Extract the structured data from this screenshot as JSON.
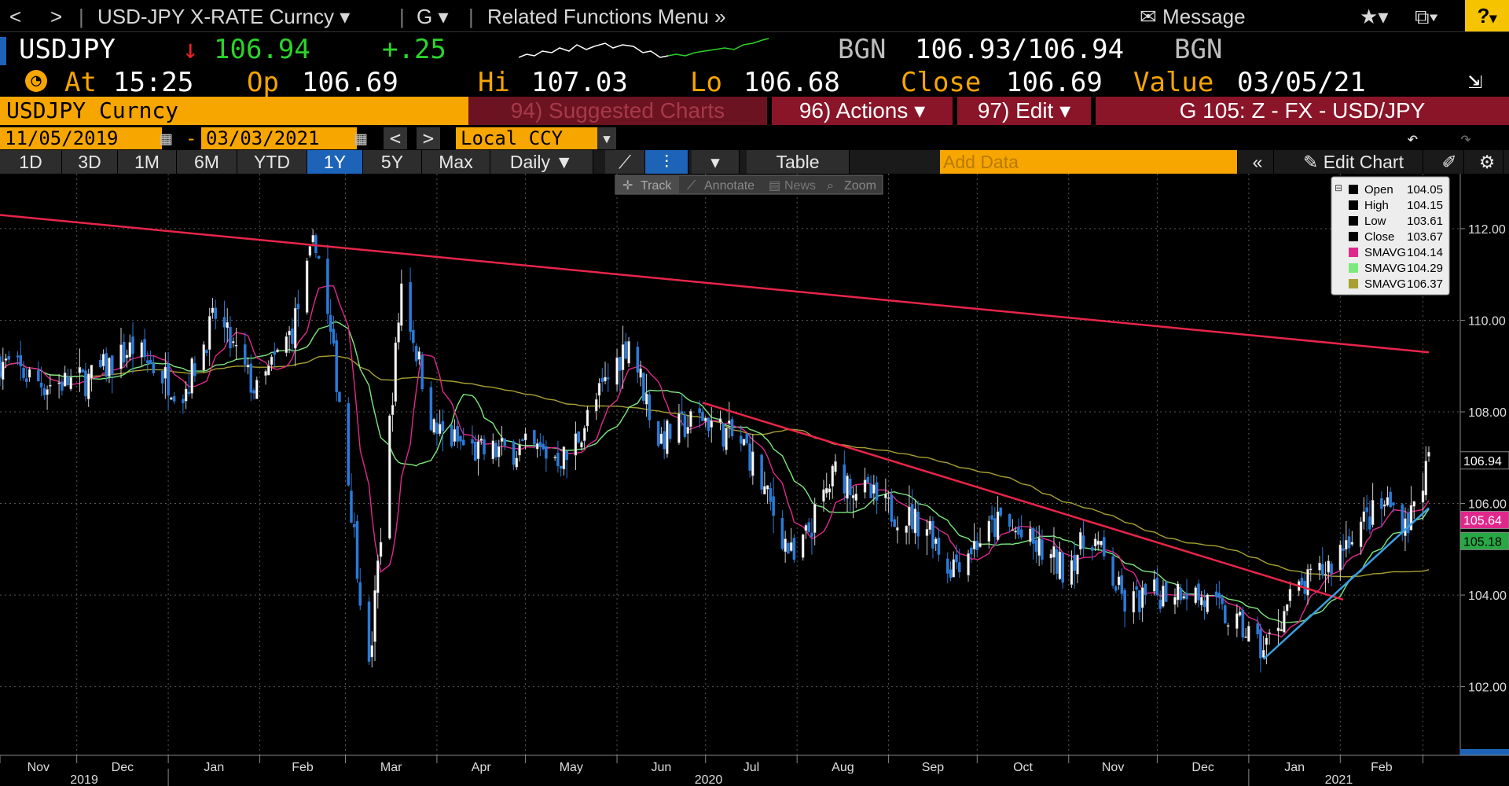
{
  "title_bar": {
    "back": "<",
    "forward": ">",
    "security": "USD-JPY X-RATE Curncy",
    "g_menu": "G",
    "related": "Related Functions Menu",
    "message": "Message",
    "help": "?"
  },
  "quote": {
    "ticker": "USDJPY",
    "arrow": "↓",
    "last": "106.94",
    "change": "+.25",
    "bid_src": "BGN",
    "bid_ask": "106.93/106.94",
    "ask_src": "BGN"
  },
  "info": {
    "at_label": "At",
    "time": "15:25",
    "op_label": "Op",
    "open": "106.69",
    "hi_label": "Hi",
    "high": "107.03",
    "lo_label": "Lo",
    "low": "106.68",
    "close_label": "Close",
    "close": "106.69",
    "value_label": "Value",
    "value_date": "03/05/21"
  },
  "command": {
    "security_field": "USDJPY Curncy",
    "suggested": "94) Suggested Charts",
    "actions": "96) Actions",
    "edit": "97) Edit",
    "chart_id": "G 105: Z - FX - USD/JPY"
  },
  "dates": {
    "start": "11/05/2019",
    "dash": "-",
    "end": "03/03/2021",
    "currency": "Local CCY"
  },
  "ranges": {
    "buttons": [
      "1D",
      "3D",
      "1M",
      "6M",
      "YTD",
      "1Y",
      "5Y",
      "Max"
    ],
    "active": "1Y",
    "period": "Daily",
    "table": "Table",
    "add_data_placeholder": "Add Data",
    "edit_chart": "Edit Chart"
  },
  "toolbar": {
    "track": "Track",
    "annotate": "Annotate",
    "news": "News",
    "zoom": "Zoom"
  },
  "legend": {
    "rows": [
      {
        "label": "Open",
        "value": "104.05",
        "color": "#000000"
      },
      {
        "label": "High",
        "value": "104.15",
        "color": "#000000"
      },
      {
        "label": "Low",
        "value": "103.61",
        "color": "#000000"
      },
      {
        "label": "Close",
        "value": "103.67",
        "color": "#000000"
      },
      {
        "label": "SMAVG",
        "value": "104.14",
        "color": "#e0288c"
      },
      {
        "label": "SMAVG",
        "value": "104.29",
        "color": "#7de87d"
      },
      {
        "label": "SMAVG",
        "value": "106.37",
        "color": "#a8a030"
      }
    ]
  },
  "colors": {
    "up": "#ffffff",
    "down": "#2b7bd8",
    "sma_pink": "#e0288c",
    "sma_green": "#7de87d",
    "sma_olive": "#a8a030",
    "trend_red": "#e8254a",
    "trend_blue": "#3a9ee0",
    "accent_orange": "#f7a600"
  },
  "chart_data": {
    "type": "candlestick",
    "x_start": "2019-11-05",
    "x_end": "2021-03-03",
    "ylim": [
      100.5,
      113.2
    ],
    "y_ticks": [
      "112.00",
      "110.00",
      "108.00",
      "106.00",
      "104.00",
      "102.00"
    ],
    "month_labels": [
      "Nov",
      "Dec",
      "Jan",
      "Feb",
      "Mar",
      "Apr",
      "May",
      "Jun",
      "Jul",
      "Aug",
      "Sep",
      "Oct",
      "Nov",
      "Dec",
      "Jan",
      "Feb"
    ],
    "year_labels": [
      "2019",
      "2020",
      "2021"
    ],
    "last_price_label": "106.94",
    "sma_labels": [
      "105.64",
      "105.18"
    ],
    "close_path": [
      [
        "2019-11-05",
        109.1
      ],
      [
        "2019-11-20",
        108.6
      ],
      [
        "2019-12-05",
        108.7
      ],
      [
        "2019-12-20",
        109.4
      ],
      [
        "2020-01-06",
        108.4
      ],
      [
        "2020-01-17",
        110.1
      ],
      [
        "2020-01-31",
        108.4
      ],
      [
        "2020-02-12",
        109.8
      ],
      [
        "2020-02-20",
        111.8
      ],
      [
        "2020-02-28",
        108.3
      ],
      [
        "2020-03-09",
        102.3
      ],
      [
        "2020-03-20",
        110.8
      ],
      [
        "2020-03-31",
        107.6
      ],
      [
        "2020-04-15",
        107.1
      ],
      [
        "2020-04-30",
        107.2
      ],
      [
        "2020-05-15",
        107.0
      ],
      [
        "2020-06-05",
        109.6
      ],
      [
        "2020-06-15",
        107.4
      ],
      [
        "2020-06-30",
        107.9
      ],
      [
        "2020-07-15",
        107.2
      ],
      [
        "2020-07-31",
        104.7
      ],
      [
        "2020-08-14",
        106.7
      ],
      [
        "2020-08-31",
        105.9
      ],
      [
        "2020-09-15",
        105.5
      ],
      [
        "2020-09-21",
        104.6
      ],
      [
        "2020-10-09",
        105.6
      ],
      [
        "2020-10-30",
        104.6
      ],
      [
        "2020-11-09",
        105.3
      ],
      [
        "2020-11-20",
        103.8
      ],
      [
        "2020-12-10",
        104.2
      ],
      [
        "2020-12-31",
        103.2
      ],
      [
        "2021-01-06",
        102.8
      ],
      [
        "2021-01-15",
        103.9
      ],
      [
        "2021-01-29",
        104.7
      ],
      [
        "2021-02-05",
        105.4
      ],
      [
        "2021-02-17",
        106.0
      ],
      [
        "2021-02-24",
        105.6
      ],
      [
        "2021-03-03",
        106.9
      ]
    ],
    "trendlines": [
      {
        "color": "red",
        "from": [
          "2019-11-05",
          112.3
        ],
        "to": [
          "2021-03-03",
          109.3
        ]
      },
      {
        "color": "red",
        "from": [
          "2020-06-30",
          108.2
        ],
        "to": [
          "2021-02-02",
          103.9
        ]
      },
      {
        "color": "blue",
        "from": [
          "2021-01-06",
          102.6
        ],
        "to": [
          "2021-03-03",
          105.9
        ]
      }
    ]
  }
}
